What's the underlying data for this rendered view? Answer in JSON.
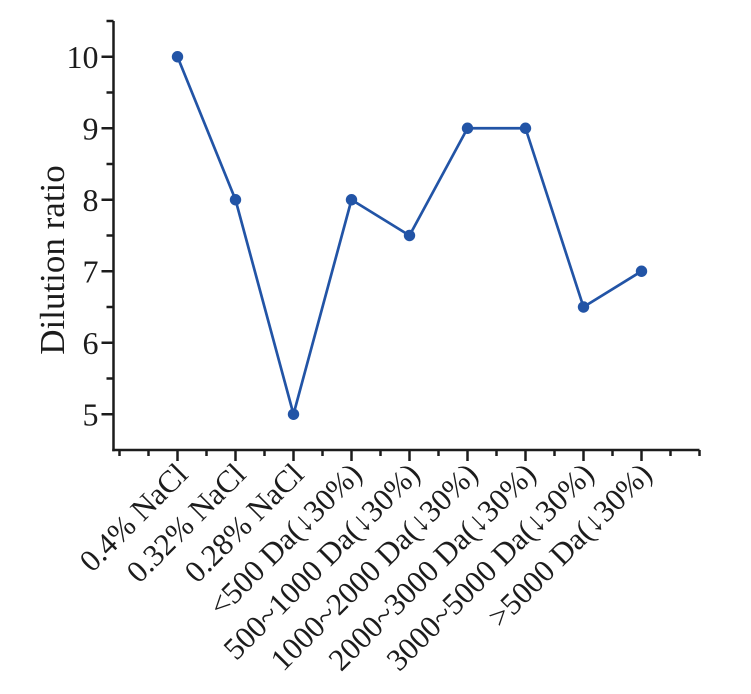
{
  "chart_data": {
    "type": "line",
    "ylabel": "Dilution ratio",
    "xlabel": "",
    "categories": [
      "0.4% NaCl",
      "0.32% NaCl",
      "0.28% NaCl",
      "<500 Da(↓30%)",
      "500~1000 Da(↓30%)",
      "1000~2000 Da(↓30%)",
      "2000~3000 Da(↓30%)",
      "3000~5000 Da(↓30%)",
      ">5000 Da(↓30%)"
    ],
    "series": [
      {
        "name": "Dilution ratio",
        "values": [
          10,
          8,
          5,
          8,
          7.5,
          9,
          9,
          6.5,
          7
        ]
      }
    ],
    "ylim": [
      4.5,
      10.5
    ],
    "yticks": [
      5,
      6,
      7,
      8,
      9,
      10
    ],
    "y_minor_tick_step": 0.5,
    "x_label_rotation_deg": 45,
    "grid": false,
    "legend_position": "none",
    "line_color": "#2254a6",
    "marker": "circle",
    "marker_color": "#2254a6",
    "axis_color": "#1c1c1c"
  }
}
